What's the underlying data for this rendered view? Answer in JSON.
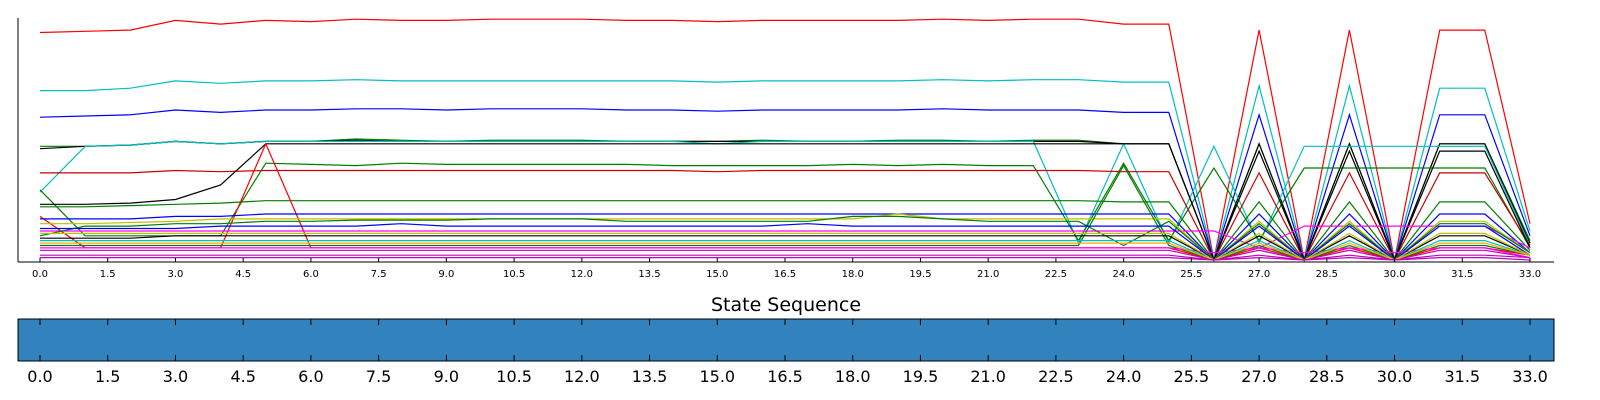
{
  "chart_data": [
    {
      "type": "line",
      "title": "",
      "xlabel": "",
      "ylabel": "",
      "x": [
        0,
        1,
        2,
        3,
        4,
        5,
        6,
        7,
        8,
        9,
        10,
        11,
        12,
        13,
        14,
        15,
        16,
        17,
        18,
        19,
        20,
        21,
        22,
        23,
        24,
        25,
        26,
        27,
        28,
        29,
        30,
        31,
        32,
        33
      ],
      "xlim": [
        0,
        33
      ],
      "ylim": [
        0,
        1
      ],
      "xtick_labels": [
        "0.0",
        "1.5",
        "3.0",
        "4.5",
        "6.0",
        "7.5",
        "9.0",
        "10.5",
        "12.0",
        "13.5",
        "15.0",
        "16.5",
        "18.0",
        "19.5",
        "21.0",
        "22.5",
        "24.0",
        "25.5",
        "27.0",
        "28.5",
        "30.0",
        "31.5",
        "33.0"
      ],
      "show_y_ticks": false,
      "grid": false,
      "series": [
        {
          "color": "#ff0000",
          "values": [
            0.94,
            0.945,
            0.95,
            0.99,
            0.975,
            0.99,
            0.985,
            0.995,
            0.99,
            0.99,
            0.995,
            0.995,
            0.995,
            0.99,
            0.99,
            0.985,
            0.99,
            0.99,
            0.99,
            0.99,
            0.995,
            0.99,
            0.995,
            0.995,
            0.975,
            0.975,
            0.0,
            0.95,
            0.0,
            0.95,
            0.0,
            0.95,
            0.95,
            0.15
          ]
        },
        {
          "color": "#00bfbf",
          "values": [
            0.7,
            0.7,
            0.71,
            0.74,
            0.73,
            0.74,
            0.74,
            0.745,
            0.74,
            0.74,
            0.74,
            0.74,
            0.74,
            0.74,
            0.74,
            0.735,
            0.74,
            0.74,
            0.74,
            0.74,
            0.745,
            0.74,
            0.745,
            0.745,
            0.735,
            0.735,
            0.0,
            0.72,
            0.0,
            0.72,
            0.0,
            0.71,
            0.71,
            0.12
          ]
        },
        {
          "color": "#0000ff",
          "values": [
            0.59,
            0.595,
            0.6,
            0.62,
            0.61,
            0.62,
            0.62,
            0.625,
            0.625,
            0.62,
            0.625,
            0.625,
            0.625,
            0.62,
            0.62,
            0.615,
            0.62,
            0.62,
            0.62,
            0.62,
            0.625,
            0.62,
            0.62,
            0.62,
            0.61,
            0.61,
            0.0,
            0.6,
            0.0,
            0.6,
            0.0,
            0.6,
            0.6,
            0.1
          ]
        },
        {
          "color": "#007f00",
          "values": [
            0.47,
            0.47,
            0.475,
            0.49,
            0.48,
            0.49,
            0.49,
            0.5,
            0.495,
            0.49,
            0.495,
            0.495,
            0.495,
            0.49,
            0.49,
            0.49,
            0.495,
            0.49,
            0.49,
            0.495,
            0.495,
            0.49,
            0.495,
            0.495,
            0.48,
            0.48,
            0.0,
            0.48,
            0.0,
            0.48,
            0.0,
            0.48,
            0.48,
            0.08
          ]
        },
        {
          "color": "#000000",
          "values": [
            0.46,
            0.47,
            0.475,
            0.49,
            0.48,
            0.49,
            0.49,
            0.495,
            0.49,
            0.49,
            0.49,
            0.49,
            0.49,
            0.49,
            0.49,
            0.49,
            0.49,
            0.49,
            0.49,
            0.49,
            0.49,
            0.49,
            0.49,
            0.49,
            0.48,
            0.48,
            0.0,
            0.48,
            0.0,
            0.48,
            0.0,
            0.48,
            0.48,
            0.07
          ]
        },
        {
          "color": "#00bfbf",
          "values": [
            0.28,
            0.47,
            0.475,
            0.49,
            0.48,
            0.49,
            0.49,
            0.49,
            0.49,
            0.49,
            0.49,
            0.49,
            0.49,
            0.49,
            0.49,
            0.48,
            0.49,
            0.49,
            0.49,
            0.49,
            0.49,
            0.49,
            0.49,
            0.07,
            0.48,
            0.07,
            0.47,
            0.07,
            0.47,
            0.47,
            0.47,
            0.47,
            0.47,
            0.06
          ]
        },
        {
          "color": "#007f00",
          "values": [
            0.29,
            0.1,
            0.1,
            0.1,
            0.1,
            0.4,
            0.395,
            0.39,
            0.4,
            0.395,
            0.395,
            0.395,
            0.395,
            0.395,
            0.39,
            0.39,
            0.39,
            0.39,
            0.395,
            0.39,
            0.395,
            0.39,
            0.39,
            0.08,
            0.4,
            0.08,
            0.38,
            0.08,
            0.38,
            0.38,
            0.38,
            0.38,
            0.38,
            0.05
          ]
        },
        {
          "color": "#cc0000",
          "values": [
            0.36,
            0.36,
            0.36,
            0.37,
            0.365,
            0.37,
            0.37,
            0.37,
            0.37,
            0.37,
            0.37,
            0.37,
            0.37,
            0.37,
            0.37,
            0.365,
            0.37,
            0.37,
            0.37,
            0.37,
            0.37,
            0.37,
            0.37,
            0.37,
            0.365,
            0.365,
            0.0,
            0.36,
            0.0,
            0.36,
            0.0,
            0.36,
            0.36,
            0.06
          ]
        },
        {
          "color": "#000000",
          "values": [
            0.23,
            0.23,
            0.235,
            0.25,
            0.31,
            0.48,
            0.48,
            0.48,
            0.48,
            0.48,
            0.48,
            0.48,
            0.48,
            0.48,
            0.48,
            0.48,
            0.48,
            0.48,
            0.48,
            0.48,
            0.48,
            0.48,
            0.48,
            0.48,
            0.48,
            0.48,
            0.0,
            0.45,
            0.0,
            0.45,
            0.0,
            0.45,
            0.45,
            0.05
          ]
        },
        {
          "color": "#007f00",
          "values": [
            0.22,
            0.22,
            0.225,
            0.23,
            0.235,
            0.245,
            0.245,
            0.245,
            0.245,
            0.245,
            0.245,
            0.245,
            0.245,
            0.245,
            0.245,
            0.245,
            0.245,
            0.245,
            0.245,
            0.245,
            0.245,
            0.245,
            0.245,
            0.245,
            0.24,
            0.24,
            0.0,
            0.24,
            0.0,
            0.24,
            0.0,
            0.24,
            0.24,
            0.04
          ]
        },
        {
          "color": "#ff0000",
          "values": [
            0.18,
            0.05,
            0.05,
            0.05,
            0.05,
            0.48,
            0.05,
            0.05,
            0.05,
            0.05,
            0.05,
            0.05,
            0.05,
            0.05,
            0.05,
            0.05,
            0.05,
            0.05,
            0.05,
            0.05,
            0.05,
            0.05,
            0.05,
            0.05,
            0.05,
            0.05,
            0.0,
            0.05,
            0.0,
            0.05,
            0.0,
            0.05,
            0.05,
            0.02
          ]
        },
        {
          "color": "#0000ff",
          "values": [
            0.17,
            0.17,
            0.17,
            0.18,
            0.18,
            0.19,
            0.19,
            0.19,
            0.19,
            0.19,
            0.19,
            0.19,
            0.19,
            0.19,
            0.19,
            0.19,
            0.19,
            0.19,
            0.19,
            0.19,
            0.19,
            0.19,
            0.19,
            0.19,
            0.19,
            0.19,
            0.0,
            0.19,
            0.0,
            0.19,
            0.0,
            0.19,
            0.19,
            0.03
          ]
        },
        {
          "color": "#ff00ff",
          "values": [
            0.12,
            0.12,
            0.12,
            0.12,
            0.12,
            0.12,
            0.12,
            0.12,
            0.12,
            0.12,
            0.12,
            0.12,
            0.12,
            0.12,
            0.12,
            0.12,
            0.12,
            0.12,
            0.12,
            0.12,
            0.12,
            0.12,
            0.12,
            0.12,
            0.12,
            0.12,
            0.12,
            0.05,
            0.14,
            0.14,
            0.14,
            0.14,
            0.14,
            0.05
          ]
        },
        {
          "color": "#bfbf00",
          "values": [
            0.15,
            0.15,
            0.155,
            0.16,
            0.17,
            0.17,
            0.17,
            0.17,
            0.17,
            0.17,
            0.17,
            0.17,
            0.17,
            0.17,
            0.17,
            0.17,
            0.17,
            0.17,
            0.17,
            0.19,
            0.17,
            0.17,
            0.17,
            0.17,
            0.17,
            0.17,
            0.0,
            0.16,
            0.0,
            0.16,
            0.0,
            0.16,
            0.16,
            0.03
          ]
        },
        {
          "color": "#007f00",
          "values": [
            0.1,
            0.14,
            0.14,
            0.15,
            0.15,
            0.16,
            0.16,
            0.165,
            0.165,
            0.165,
            0.17,
            0.17,
            0.17,
            0.16,
            0.16,
            0.16,
            0.16,
            0.16,
            0.18,
            0.18,
            0.17,
            0.16,
            0.16,
            0.16,
            0.06,
            0.16,
            0.0,
            0.15,
            0.0,
            0.15,
            0.0,
            0.15,
            0.15,
            0.03
          ]
        },
        {
          "color": "#007f00",
          "values": [
            0.06,
            0.06,
            0.06,
            0.06,
            0.06,
            0.06,
            0.06,
            0.06,
            0.06,
            0.06,
            0.06,
            0.06,
            0.06,
            0.06,
            0.06,
            0.06,
            0.06,
            0.06,
            0.06,
            0.06,
            0.06,
            0.06,
            0.06,
            0.06,
            0.39,
            0.06,
            0.0,
            0.06,
            0.0,
            0.06,
            0.0,
            0.06,
            0.06,
            0.02
          ]
        },
        {
          "color": "#bf00bf",
          "values": [
            0.04,
            0.04,
            0.04,
            0.04,
            0.04,
            0.04,
            0.04,
            0.04,
            0.04,
            0.04,
            0.04,
            0.04,
            0.04,
            0.04,
            0.04,
            0.04,
            0.04,
            0.04,
            0.04,
            0.04,
            0.04,
            0.04,
            0.04,
            0.04,
            0.04,
            0.04,
            0.0,
            0.04,
            0.0,
            0.04,
            0.0,
            0.04,
            0.04,
            0.01
          ]
        },
        {
          "color": "#ff00ff",
          "values": [
            0.05,
            0.05,
            0.05,
            0.05,
            0.05,
            0.05,
            0.05,
            0.05,
            0.05,
            0.05,
            0.05,
            0.05,
            0.05,
            0.05,
            0.05,
            0.05,
            0.05,
            0.05,
            0.05,
            0.05,
            0.05,
            0.05,
            0.05,
            0.05,
            0.05,
            0.05,
            0.03,
            0.05,
            0.03,
            0.05,
            0.03,
            0.05,
            0.05,
            0.01
          ]
        },
        {
          "color": "#000000",
          "values": [
            0.09,
            0.09,
            0.09,
            0.1,
            0.1,
            0.1,
            0.1,
            0.1,
            0.1,
            0.1,
            0.1,
            0.1,
            0.1,
            0.1,
            0.1,
            0.1,
            0.1,
            0.1,
            0.1,
            0.1,
            0.1,
            0.1,
            0.1,
            0.1,
            0.1,
            0.1,
            0.0,
            0.1,
            0.0,
            0.1,
            0.0,
            0.1,
            0.1,
            0.02
          ]
        },
        {
          "color": "#00bfbf",
          "values": [
            0.08,
            0.08,
            0.08,
            0.08,
            0.08,
            0.08,
            0.08,
            0.08,
            0.08,
            0.08,
            0.08,
            0.08,
            0.08,
            0.08,
            0.08,
            0.08,
            0.08,
            0.08,
            0.08,
            0.08,
            0.08,
            0.08,
            0.08,
            0.08,
            0.08,
            0.08,
            0.0,
            0.08,
            0.0,
            0.08,
            0.0,
            0.08,
            0.08,
            0.02
          ]
        },
        {
          "color": "#ffa500",
          "values": [
            0.07,
            0.07,
            0.07,
            0.07,
            0.07,
            0.07,
            0.07,
            0.07,
            0.07,
            0.07,
            0.07,
            0.07,
            0.07,
            0.07,
            0.07,
            0.07,
            0.07,
            0.07,
            0.07,
            0.07,
            0.07,
            0.07,
            0.07,
            0.07,
            0.07,
            0.07,
            0.0,
            0.07,
            0.0,
            0.07,
            0.0,
            0.07,
            0.07,
            0.02
          ]
        },
        {
          "color": "#0000ff",
          "values": [
            0.13,
            0.13,
            0.13,
            0.13,
            0.14,
            0.14,
            0.14,
            0.14,
            0.15,
            0.14,
            0.14,
            0.14,
            0.14,
            0.14,
            0.14,
            0.14,
            0.14,
            0.15,
            0.14,
            0.14,
            0.14,
            0.14,
            0.14,
            0.14,
            0.14,
            0.14,
            0.0,
            0.14,
            0.0,
            0.14,
            0.0,
            0.14,
            0.14,
            0.02
          ]
        },
        {
          "color": "#bfbf00",
          "values": [
            0.11,
            0.11,
            0.11,
            0.11,
            0.11,
            0.11,
            0.11,
            0.11,
            0.11,
            0.11,
            0.11,
            0.11,
            0.11,
            0.11,
            0.11,
            0.11,
            0.11,
            0.11,
            0.11,
            0.11,
            0.11,
            0.11,
            0.11,
            0.11,
            0.11,
            0.11,
            0.0,
            0.11,
            0.0,
            0.11,
            0.0,
            0.11,
            0.11,
            0.02
          ]
        },
        {
          "color": "#bf00bf",
          "values": [
            0.02,
            0.02,
            0.02,
            0.02,
            0.02,
            0.02,
            0.02,
            0.02,
            0.02,
            0.02,
            0.02,
            0.02,
            0.02,
            0.02,
            0.02,
            0.02,
            0.02,
            0.02,
            0.02,
            0.02,
            0.02,
            0.02,
            0.02,
            0.02,
            0.02,
            0.02,
            0.0,
            0.02,
            0.0,
            0.02,
            0.0,
            0.02,
            0.02,
            0.01
          ]
        },
        {
          "color": "#bf00bf",
          "values": [
            0.01,
            0.01,
            0.01,
            0.01,
            0.01,
            0.01,
            0.01,
            0.01,
            0.01,
            0.01,
            0.01,
            0.01,
            0.01,
            0.01,
            0.01,
            0.01,
            0.01,
            0.01,
            0.01,
            0.01,
            0.01,
            0.01,
            0.01,
            0.01,
            0.01,
            0.01,
            0.0,
            0.01,
            0.0,
            0.01,
            0.0,
            0.01,
            0.01,
            0.0
          ]
        }
      ]
    },
    {
      "type": "heatmap",
      "title": "State Sequence",
      "x": [
        0,
        1,
        2,
        3,
        4,
        5,
        6,
        7,
        8,
        9,
        10,
        11,
        12,
        13,
        14,
        15,
        16,
        17,
        18,
        19,
        20,
        21,
        22,
        23,
        24,
        25,
        26,
        27,
        28,
        29,
        30,
        31,
        32,
        33
      ],
      "values": [
        0,
        0,
        0,
        0,
        0,
        0,
        0,
        0,
        0,
        0,
        0,
        0,
        0,
        0,
        0,
        0,
        0,
        0,
        0,
        0,
        0,
        0,
        0,
        0,
        0,
        0,
        0,
        0,
        0,
        0,
        0,
        0,
        0,
        0
      ],
      "color": "#3182bd",
      "xtick_labels": [
        "0.0",
        "1.5",
        "3.0",
        "4.5",
        "6.0",
        "7.5",
        "9.0",
        "10.5",
        "12.0",
        "13.5",
        "15.0",
        "16.5",
        "18.0",
        "19.5",
        "21.0",
        "22.5",
        "24.0",
        "25.5",
        "27.0",
        "28.5",
        "30.0",
        "31.5",
        "33.0"
      ]
    }
  ]
}
